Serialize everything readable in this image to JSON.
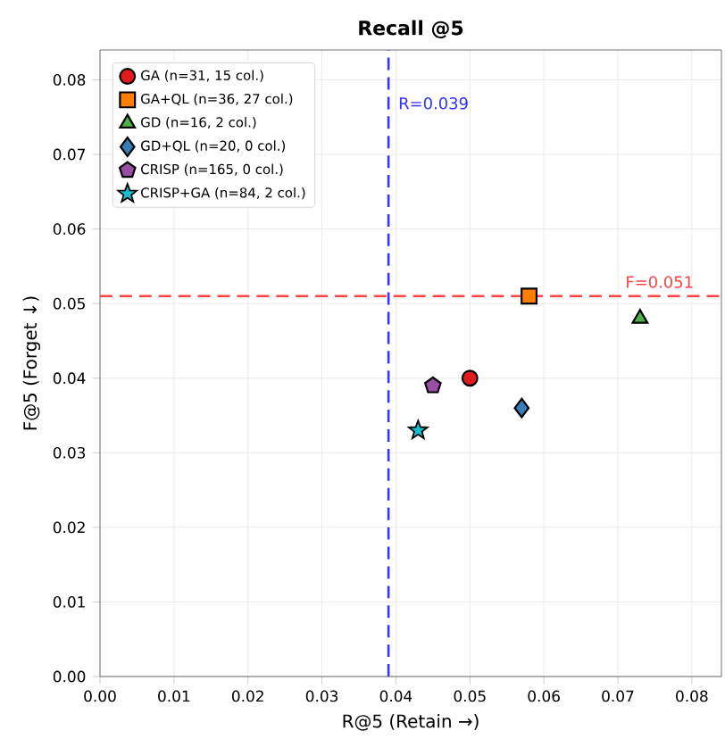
{
  "chart_data": {
    "type": "scatter",
    "title": "Recall @5",
    "xlabel": "R@5 (Retain →)",
    "ylabel": "F@5 (Forget ↓)",
    "xlim": [
      0,
      0.084
    ],
    "ylim": [
      0,
      0.084
    ],
    "xticks": [
      {
        "value": 0,
        "label": "0.00"
      },
      0.01,
      0.02,
      0.03,
      0.04,
      0.05,
      0.06,
      0.07,
      0.08
    ],
    "yticks": [
      {
        "value": 0,
        "label": "0.00"
      },
      0.01,
      0.02,
      0.03,
      0.04,
      0.05,
      0.06,
      0.07,
      0.08
    ],
    "grid": true,
    "legend": "top left",
    "series": [
      {
        "name": "GA (n=31, 15 col.)",
        "color": "#e31a1c",
        "marker": "circle",
        "x": [
          0.05
        ],
        "values": [
          0.04
        ]
      },
      {
        "name": "GA+QL (n=36, 27 col.)",
        "color": "#ff7f00",
        "marker": "square",
        "x": [
          0.058
        ],
        "values": [
          0.051
        ]
      },
      {
        "name": "GD (n=16, 2 col.)",
        "color": "#4daf4a",
        "marker": "triangle",
        "x": [
          0.073
        ],
        "values": [
          0.048
        ]
      },
      {
        "name": "GD+QL (n=20, 0 col.)",
        "color": "#377eb8",
        "marker": "diamond",
        "x": [
          0.057
        ],
        "values": [
          0.036
        ]
      },
      {
        "name": "CRISP (n=165, 0 col.)",
        "color": "#984ea3",
        "x": [
          0.045
        ],
        "values": [
          0.039
        ]
      },
      {
        "name": "CRISP+GA (n=84, 2 col.)",
        "color": "#17becf",
        "marker": "star",
        "x": [
          0.043
        ],
        "values": [
          0.033
        ]
      }
    ],
    "ref_lines": [
      {
        "axis": "x",
        "value": 0.039,
        "label": "R=0.039",
        "color": "#3333ff",
        "line_style": "dashed"
      },
      {
        "axis": "y",
        "value": 0.051,
        "label": "F=0.051",
        "color": "#ff4444",
        "line_style": "dashed"
      }
    ]
  }
}
